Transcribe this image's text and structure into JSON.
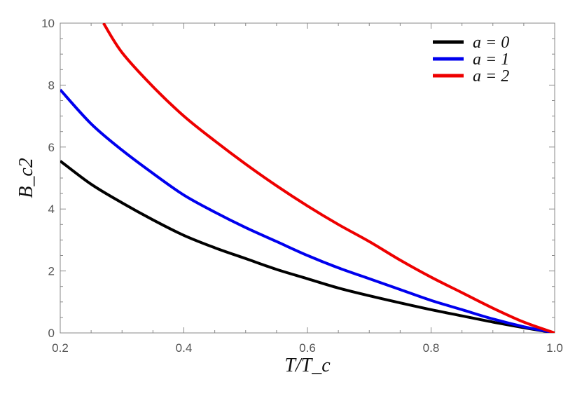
{
  "chart_data": {
    "type": "line",
    "xlabel": "T/T_c",
    "ylabel": "B_c2",
    "xlim": [
      0.2,
      1.0
    ],
    "ylim": [
      0,
      10
    ],
    "xticks": [
      "0.2",
      "0.4",
      "0.6",
      "0.8",
      "1.0"
    ],
    "yticks": [
      "0",
      "2",
      "4",
      "6",
      "8",
      "10"
    ],
    "grid": false,
    "legend_position": "top-right",
    "series": [
      {
        "name": "a = 0",
        "color": "#000000",
        "x": [
          0.2,
          0.25,
          0.3,
          0.35,
          0.4,
          0.45,
          0.5,
          0.55,
          0.6,
          0.65,
          0.7,
          0.75,
          0.8,
          0.85,
          0.9,
          0.95,
          1.0
        ],
        "y": [
          5.55,
          4.8,
          4.2,
          3.65,
          3.15,
          2.75,
          2.4,
          2.05,
          1.75,
          1.45,
          1.2,
          0.97,
          0.75,
          0.55,
          0.35,
          0.17,
          0.0
        ]
      },
      {
        "name": "a = 1",
        "color": "#0000ee",
        "x": [
          0.2,
          0.25,
          0.3,
          0.35,
          0.4,
          0.45,
          0.5,
          0.55,
          0.6,
          0.65,
          0.7,
          0.75,
          0.8,
          0.85,
          0.9,
          0.95,
          1.0
        ],
        "y": [
          7.85,
          6.75,
          5.9,
          5.15,
          4.45,
          3.9,
          3.4,
          2.95,
          2.5,
          2.1,
          1.75,
          1.4,
          1.05,
          0.75,
          0.45,
          0.2,
          0.0
        ]
      },
      {
        "name": "a = 2",
        "color": "#ee0000",
        "x": [
          0.27,
          0.3,
          0.35,
          0.4,
          0.45,
          0.5,
          0.55,
          0.6,
          0.65,
          0.7,
          0.75,
          0.8,
          0.85,
          0.9,
          0.95,
          1.0
        ],
        "y": [
          10.0,
          9.05,
          7.95,
          7.0,
          6.2,
          5.45,
          4.75,
          4.1,
          3.5,
          2.95,
          2.35,
          1.8,
          1.3,
          0.8,
          0.35,
          0.0
        ]
      }
    ]
  }
}
